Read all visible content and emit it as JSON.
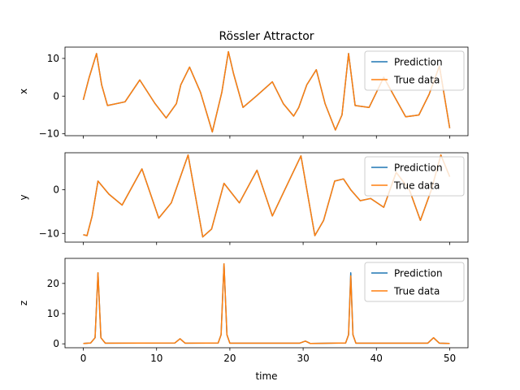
{
  "figure": {
    "title": "Rössler Attractor",
    "xlabel": "time"
  },
  "colors": {
    "prediction": "#1f77b4",
    "true_data": "#ff7f0e",
    "axes": "#000000",
    "background": "#ffffff"
  },
  "chart_data": [
    {
      "type": "line",
      "title": "Rössler Attractor",
      "xlabel": "",
      "ylabel": "x",
      "xlim": [
        -2.5,
        52.5
      ],
      "ylim": [
        -10.5,
        13
      ],
      "xticks": [
        0,
        10,
        20,
        30,
        40,
        50
      ],
      "yticks": [
        -10,
        0,
        10
      ],
      "xtick_labels_visible": false,
      "legend": "upper right",
      "grid": false,
      "series": [
        {
          "name": "Prediction",
          "color": "#1f77b4",
          "x": [
            0,
            0.8,
            1.8,
            2.5,
            3.3,
            5.7,
            7.7,
            9.8,
            11.3,
            12.7,
            13.3,
            14.5,
            16,
            17.6,
            18.9,
            19.8,
            20.5,
            21.8,
            23.6,
            25.8,
            27.3,
            28.7,
            29.4,
            30.5,
            31.8,
            33,
            34.4,
            35.3,
            36.2,
            37.1,
            39,
            41,
            44,
            45.8,
            47.2,
            48.6,
            50
          ],
          "y": [
            -1,
            5,
            11.3,
            3,
            -2.5,
            -1.5,
            4.3,
            -2,
            -5.8,
            -2,
            3,
            7.7,
            1,
            -9.5,
            1,
            11.8,
            6,
            -3,
            0,
            3.8,
            -2,
            -5.3,
            -3,
            3,
            7,
            -2,
            -9,
            -5,
            11.3,
            -2.5,
            -3,
            5,
            -5.5,
            -5,
            0.5,
            8,
            -8.5
          ]
        },
        {
          "name": "True data",
          "color": "#ff7f0e",
          "x": [
            0,
            0.8,
            1.8,
            2.5,
            3.3,
            5.7,
            7.7,
            9.8,
            11.3,
            12.7,
            13.3,
            14.5,
            16,
            17.6,
            18.9,
            19.8,
            20.5,
            21.8,
            23.6,
            25.8,
            27.3,
            28.7,
            29.4,
            30.5,
            31.8,
            33,
            34.4,
            35.3,
            36.2,
            37.1,
            39,
            41,
            44,
            45.8,
            47.2,
            48.6,
            50
          ],
          "y": [
            -1,
            5,
            11.3,
            3,
            -2.5,
            -1.5,
            4.3,
            -2,
            -5.8,
            -2,
            3,
            7.7,
            1,
            -9.5,
            1,
            11.8,
            6,
            -3,
            0,
            3.8,
            -2,
            -5.3,
            -3,
            3,
            7,
            -2,
            -9,
            -5,
            11.3,
            -2.5,
            -3,
            5,
            -5.5,
            -5,
            0.5,
            8,
            -8.5
          ]
        }
      ]
    },
    {
      "type": "line",
      "title": "",
      "xlabel": "",
      "ylabel": "y",
      "xlim": [
        -2.5,
        52.5
      ],
      "ylim": [
        -12,
        8.5
      ],
      "xticks": [
        0,
        10,
        20,
        30,
        40,
        50
      ],
      "yticks": [
        -10,
        0
      ],
      "xtick_labels_visible": false,
      "legend": "upper right",
      "grid": false,
      "series": [
        {
          "name": "Prediction",
          "color": "#1f77b4",
          "x": [
            0,
            0.5,
            1.2,
            2,
            3.5,
            5.3,
            8,
            10.3,
            12,
            14.3,
            16.3,
            17.5,
            19.2,
            21.3,
            23.7,
            25.8,
            27.5,
            29.7,
            31.6,
            32.8,
            34.3,
            35.5,
            36.5,
            37.8,
            39.2,
            41,
            42.7,
            44.5,
            46,
            47.5,
            48.8,
            50
          ],
          "y": [
            -10.3,
            -10.5,
            -6,
            2,
            -1,
            -3.5,
            4.8,
            -6.5,
            -3,
            8,
            -10.8,
            -9,
            1.5,
            -3,
            4.5,
            -6,
            0,
            7.8,
            -10.5,
            -7,
            2,
            2.5,
            0,
            -2.5,
            -2,
            -4,
            4,
            0,
            -7,
            0,
            8,
            3
          ]
        },
        {
          "name": "True data",
          "color": "#ff7f0e",
          "x": [
            0,
            0.5,
            1.2,
            2,
            3.5,
            5.3,
            8,
            10.3,
            12,
            14.3,
            16.3,
            17.5,
            19.2,
            21.3,
            23.7,
            25.8,
            27.5,
            29.7,
            31.6,
            32.8,
            34.3,
            35.5,
            36.5,
            37.8,
            39.2,
            41,
            42.7,
            44.5,
            46,
            47.5,
            48.8,
            50
          ],
          "y": [
            -10.3,
            -10.5,
            -6,
            2,
            -1,
            -3.5,
            4.8,
            -6.5,
            -3,
            8,
            -10.8,
            -9,
            1.5,
            -3,
            4.5,
            -6,
            0,
            7.8,
            -10.5,
            -7,
            2,
            2.5,
            0,
            -2.5,
            -2,
            -4,
            4,
            0,
            -7,
            0,
            8,
            3
          ]
        }
      ]
    },
    {
      "type": "line",
      "title": "",
      "xlabel": "time",
      "ylabel": "z",
      "xlim": [
        -2.5,
        52.5
      ],
      "ylim": [
        -1.3,
        28.3
      ],
      "xticks": [
        0,
        10,
        20,
        30,
        40,
        50
      ],
      "yticks": [
        0,
        10,
        20
      ],
      "xtick_labels_visible": true,
      "legend": "upper right",
      "grid": false,
      "series": [
        {
          "name": "Prediction",
          "color": "#1f77b4",
          "x": [
            0,
            1,
            1.6,
            2,
            2.4,
            3,
            12.5,
            13.2,
            13.9,
            18.4,
            18.8,
            19.2,
            19.6,
            20,
            29.5,
            30.3,
            31,
            35.8,
            36.2,
            36.5,
            36.8,
            37.2,
            47,
            47.8,
            48.6,
            50
          ],
          "y": [
            0.1,
            0.3,
            2,
            23.5,
            2,
            0.2,
            0.3,
            1.7,
            0.2,
            0.3,
            3,
            26.5,
            3,
            0.2,
            0.2,
            0.9,
            0.1,
            0.3,
            3,
            23.5,
            3,
            0.2,
            0.2,
            2,
            0.2,
            0.1
          ]
        },
        {
          "name": "True data",
          "color": "#ff7f0e",
          "x": [
            0,
            1,
            1.6,
            2,
            2.4,
            3,
            12.5,
            13.2,
            13.9,
            18.4,
            18.8,
            19.2,
            19.6,
            20,
            29.5,
            30.3,
            31,
            35.8,
            36.2,
            36.5,
            36.8,
            37.2,
            47,
            47.8,
            48.6,
            50
          ],
          "y": [
            0.1,
            0.3,
            2,
            23.5,
            2,
            0.2,
            0.3,
            1.7,
            0.2,
            0.3,
            3,
            26.5,
            3,
            0.2,
            0.2,
            0.9,
            0.1,
            0.3,
            3,
            22.5,
            3,
            0.2,
            0.2,
            2,
            0.2,
            0.1
          ]
        }
      ]
    }
  ]
}
